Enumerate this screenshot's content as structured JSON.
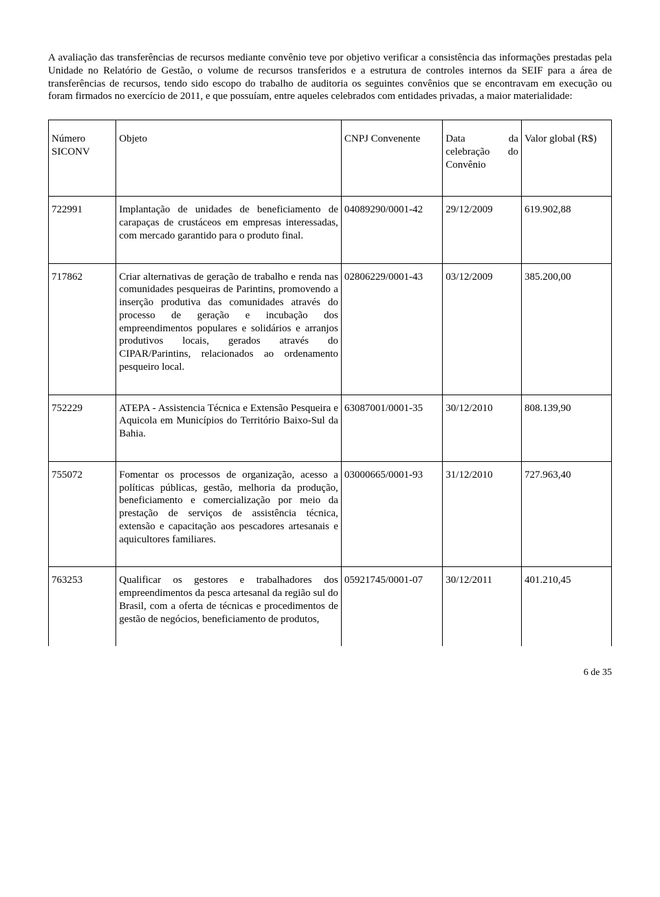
{
  "intro": "A avaliação das transferências de recursos mediante convênio teve por objetivo verificar a consistência das informações prestadas pela Unidade no Relatório de Gestão, o volume de recursos transferidos e a estrutura de controles internos da SEIF para a área de transferências de recursos, tendo sido escopo do trabalho de auditoria os seguintes convênios que se encontravam em execução ou foram firmados no exercício de 2011, e que possuíam, entre aqueles celebrados com entidades privadas, a maior materialidade:",
  "headers": {
    "numero": "Número SICONV",
    "objeto": "Objeto",
    "cnpj": "CNPJ Convenente",
    "data": "Data da celebração do Convênio",
    "valor": "Valor global (R$)"
  },
  "rows": [
    {
      "numero": "722991",
      "objeto": "Implantação de unidades de beneficiamento de carapaças de crustáceos em empresas interessadas, com mercado garantido para o produto final.",
      "cnpj": "04089290/0001-42",
      "data": "29/12/2009",
      "valor": "619.902,88"
    },
    {
      "numero": "717862",
      "objeto": "Criar alternativas de geração de trabalho e renda nas comunidades pesqueiras de Parintins, promovendo a inserção produtiva das comunidades através do processo de geração e incubação dos empreendimentos populares e solidários e arranjos produtivos locais, gerados através do CIPAR/Parintins, relacionados ao ordenamento pesqueiro local.",
      "cnpj": "02806229/0001-43",
      "data": "03/12/2009",
      "valor": "385.200,00"
    },
    {
      "numero": "752229",
      "objeto": "ATEPA - Assistencia Técnica e Extensão Pesqueira e Aquicola em Municípios do Território Baixo-Sul da Bahia.",
      "cnpj": "63087001/0001-35",
      "data": "30/12/2010",
      "valor": "808.139,90"
    },
    {
      "numero": "755072",
      "objeto": "Fomentar os processos de organização, acesso a políticas públicas, gestão, melhoria da produção, beneficiamento e comercialização por meio da prestação de serviços de assistência técnica, extensão e capacitação aos pescadores artesanais e aquicultores familiares.",
      "cnpj": "03000665/0001-93",
      "data": "31/12/2010",
      "valor": "727.963,40"
    },
    {
      "numero": "763253",
      "objeto": "Qualificar os gestores e trabalhadores dos empreendimentos da pesca artesanal da região sul do Brasil, com a oferta de técnicas e procedimentos de gestão de negócios, beneficiamento de produtos,",
      "cnpj": "05921745/0001-07",
      "data": "30/12/2011",
      "valor": "401.210,45"
    }
  ],
  "pageNumber": "6 de 35"
}
